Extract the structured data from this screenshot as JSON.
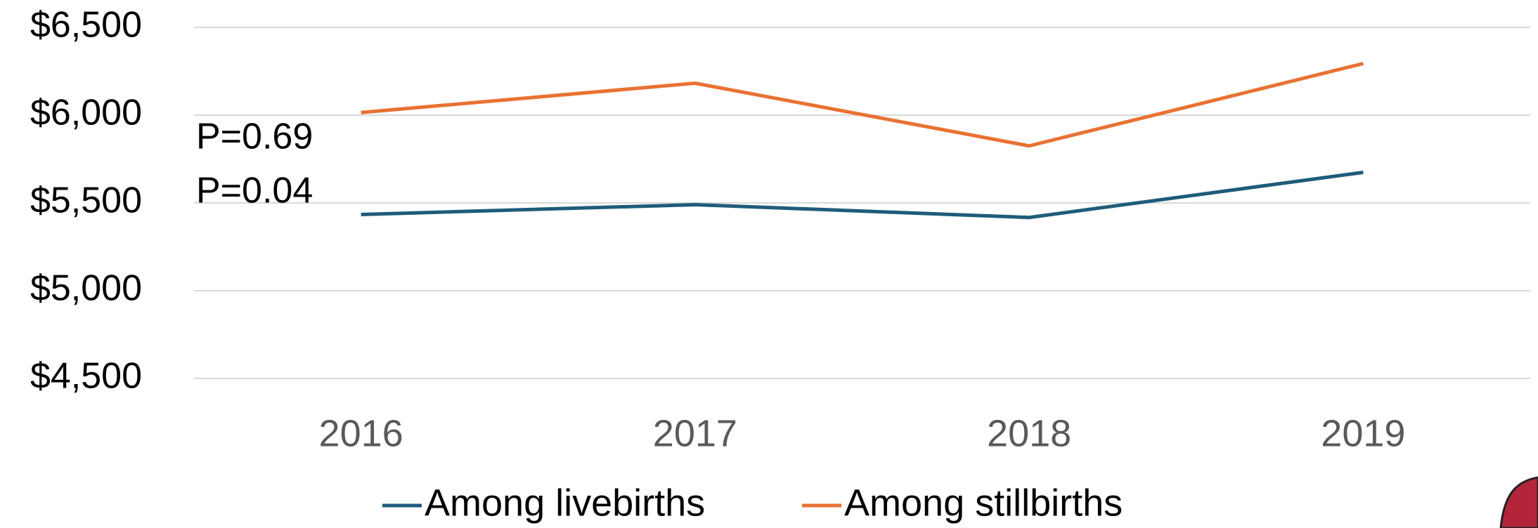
{
  "chart_data": {
    "type": "line",
    "categories": [
      "2016",
      "2017",
      "2018",
      "2019"
    ],
    "series": [
      {
        "name": "Among livebirths",
        "color": "#1f5c7a",
        "values": [
          5434,
          5490,
          5417,
          5674
        ]
      },
      {
        "name": "Among stillbirths",
        "color": "#e97132",
        "values": [
          6015,
          6182,
          5825,
          6294
        ]
      }
    ],
    "annotations": [
      "P=0.69",
      "P=0.04"
    ],
    "ylim": [
      4500,
      6500
    ],
    "yticks": [
      {
        "value": 4500,
        "label": "$4,500"
      },
      {
        "value": 5000,
        "label": "$5,000"
      },
      {
        "value": 5500,
        "label": "$5,500"
      },
      {
        "value": 6000,
        "label": "$6,000"
      },
      {
        "value": 6500,
        "label": "$6,500"
      }
    ],
    "grid": true,
    "legend": "bottom"
  }
}
